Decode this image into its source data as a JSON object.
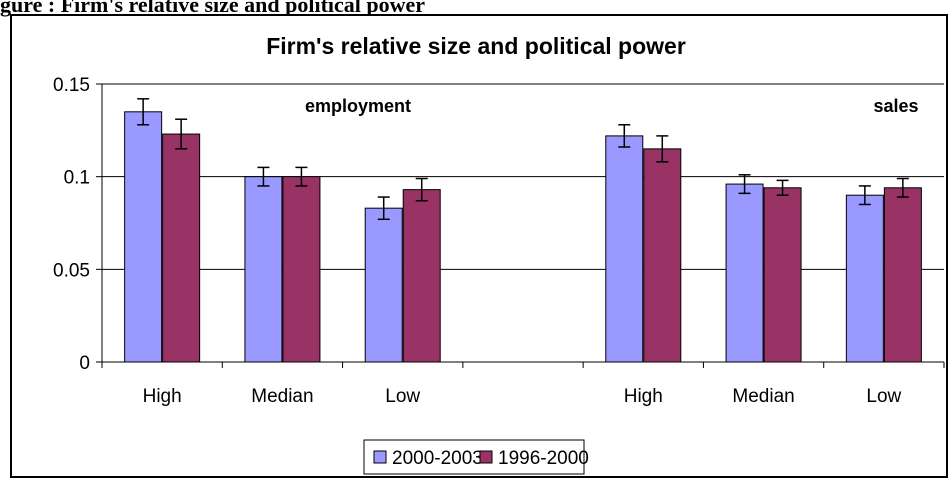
{
  "caption": "gure    : Firm's relative size and political power",
  "chart_data": {
    "type": "bar",
    "title": "Firm's relative size and political power",
    "categories": [
      "High",
      "Median",
      "Low",
      "",
      "High",
      "Median",
      "Low"
    ],
    "group_labels": [
      "employment",
      "sales"
    ],
    "series": [
      {
        "name": "2000-2003",
        "color": "#9999FF",
        "values": [
          0.135,
          0.1,
          0.083,
          null,
          0.122,
          0.096,
          0.09
        ],
        "errors": [
          0.007,
          0.005,
          0.006,
          null,
          0.006,
          0.005,
          0.005
        ]
      },
      {
        "name": "1996-2000",
        "color": "#993366",
        "values": [
          0.123,
          0.1,
          0.093,
          null,
          0.115,
          0.094,
          0.094
        ],
        "errors": [
          0.008,
          0.005,
          0.006,
          null,
          0.007,
          0.004,
          0.005
        ]
      }
    ],
    "yticks": [
      "0",
      "0.05",
      "0.1",
      "0.15"
    ],
    "ylim": [
      0,
      0.15
    ],
    "grid": true,
    "legend_position": "bottom"
  }
}
